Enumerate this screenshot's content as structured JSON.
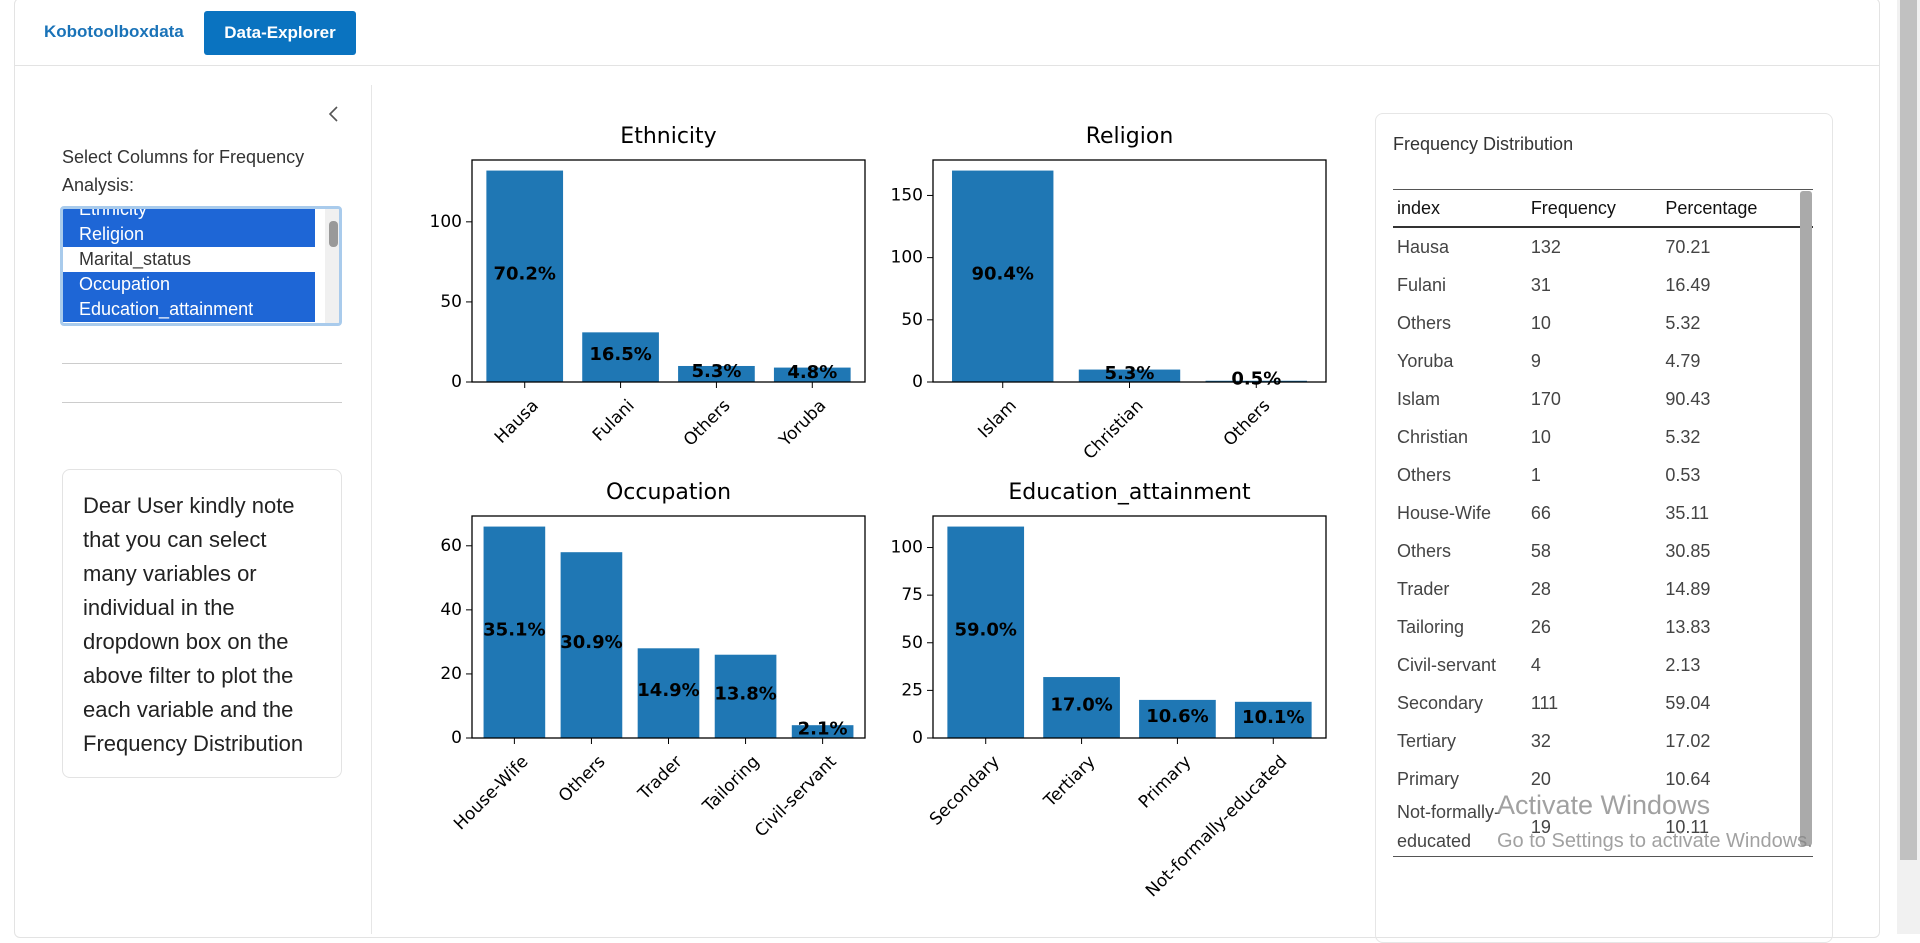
{
  "tabs": [
    "Kobotoolboxdata",
    "Data-Explorer"
  ],
  "sidebar": {
    "label": "Select Columns for Frequency Analysis:",
    "options": [
      "Ethnicity",
      "Religion",
      "Marital_status",
      "Occupation",
      "Education_attainment"
    ],
    "selected": [
      true,
      true,
      false,
      true,
      true
    ],
    "note": "Dear User kindly note that you can select many variables or individual in the dropdown box on the above filter to plot the each variable and the Frequency Distribution"
  },
  "chart_data": [
    {
      "type": "bar",
      "title": "Ethnicity",
      "categories": [
        "Hausa",
        "Fulani",
        "Others",
        "Yoruba"
      ],
      "values": [
        132,
        31,
        10,
        9
      ],
      "bar_labels": [
        "70.2%",
        "16.5%",
        "5.3%",
        "4.8%"
      ],
      "color": "#1f77b4",
      "ylim": [
        0,
        138.6
      ],
      "yticks": [
        0,
        50,
        100
      ]
    },
    {
      "type": "bar",
      "title": "Religion",
      "categories": [
        "Islam",
        "Christian",
        "Others"
      ],
      "values": [
        170,
        10,
        1
      ],
      "bar_labels": [
        "90.4%",
        "5.3%",
        "0.5%"
      ],
      "color": "#1f77b4",
      "ylim": [
        0,
        178.5
      ],
      "yticks": [
        0,
        50,
        100,
        150
      ]
    },
    {
      "type": "bar",
      "title": "Occupation",
      "categories": [
        "House-Wife",
        "Others",
        "Trader",
        "Tailoring",
        "Civil-servant"
      ],
      "values": [
        66,
        58,
        28,
        26,
        4
      ],
      "bar_labels": [
        "35.1%",
        "30.9%",
        "14.9%",
        "13.8%",
        "2.1%"
      ],
      "color": "#1f77b4",
      "ylim": [
        0,
        69.3
      ],
      "yticks": [
        0,
        20,
        40,
        60
      ]
    },
    {
      "type": "bar",
      "title": "Education_attainment",
      "categories": [
        "Secondary",
        "Tertiary",
        "Primary",
        "Not-formally-educated"
      ],
      "values": [
        111,
        32,
        20,
        19
      ],
      "bar_labels": [
        "59.0%",
        "17.0%",
        "10.6%",
        "10.1%"
      ],
      "color": "#1f77b4",
      "ylim": [
        0,
        116.55
      ],
      "yticks": [
        0,
        25,
        50,
        75,
        100
      ]
    }
  ],
  "table": {
    "title": "Frequency Distribution",
    "columns": [
      "index",
      "Frequency",
      "Percentage"
    ],
    "rows": [
      [
        "Hausa",
        132,
        70.21
      ],
      [
        "Fulani",
        31,
        16.49
      ],
      [
        "Others",
        10,
        5.32
      ],
      [
        "Yoruba",
        9,
        4.79
      ],
      [
        "Islam",
        170,
        90.43
      ],
      [
        "Christian",
        10,
        5.32
      ],
      [
        "Others",
        1,
        0.53
      ],
      [
        "House-Wife",
        66,
        35.11
      ],
      [
        "Others",
        58,
        30.85
      ],
      [
        "Trader",
        28,
        14.89
      ],
      [
        "Tailoring",
        26,
        13.83
      ],
      [
        "Civil-servant",
        4,
        2.13
      ],
      [
        "Secondary",
        111,
        59.04
      ],
      [
        "Tertiary",
        32,
        17.02
      ],
      [
        "Primary",
        20,
        10.64
      ],
      [
        "Not-formally-educated",
        19,
        10.11
      ]
    ]
  },
  "watermark": {
    "title": "Activate Windows",
    "subtitle": "Go to Settings to activate Windows."
  }
}
